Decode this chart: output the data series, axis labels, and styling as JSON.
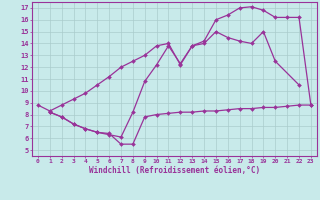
{
  "bg_color": "#c8eaea",
  "line_color": "#993399",
  "grid_color": "#aacccc",
  "xlabel": "Windchill (Refroidissement éolien,°C)",
  "ylabel_ticks": [
    5,
    6,
    7,
    8,
    9,
    10,
    11,
    12,
    13,
    14,
    15,
    16,
    17
  ],
  "xlim": [
    -0.5,
    23.5
  ],
  "ylim": [
    4.5,
    17.5
  ],
  "line1_x": [
    0,
    1,
    2,
    3,
    4,
    5,
    6,
    7,
    8,
    9,
    10,
    11,
    12,
    13,
    14,
    15,
    16,
    17,
    18,
    19,
    20,
    21,
    22,
    23
  ],
  "line1_y": [
    8.8,
    8.3,
    8.8,
    9.3,
    9.8,
    10.5,
    11.2,
    12.0,
    12.5,
    13.0,
    13.8,
    14.0,
    12.2,
    13.8,
    14.2,
    16.0,
    16.4,
    17.0,
    17.1,
    16.8,
    16.2,
    16.2,
    16.2,
    8.8
  ],
  "line2_x": [
    1,
    2,
    3,
    4,
    5,
    6,
    7,
    8,
    9,
    10,
    11,
    12,
    13,
    14,
    15,
    16,
    17,
    18,
    19,
    20,
    22
  ],
  "line2_y": [
    8.2,
    7.8,
    7.2,
    6.8,
    6.5,
    6.3,
    6.1,
    8.2,
    10.8,
    12.2,
    13.8,
    12.3,
    13.8,
    14.0,
    15.0,
    14.5,
    14.2,
    14.0,
    15.0,
    12.5,
    10.5
  ],
  "line3_x": [
    1,
    2,
    3,
    4,
    5,
    6,
    7,
    8,
    9,
    10,
    11,
    12,
    13,
    14,
    15,
    16,
    17,
    18,
    19,
    20,
    21,
    22,
    23
  ],
  "line3_y": [
    8.2,
    7.8,
    7.2,
    6.8,
    6.5,
    6.4,
    5.5,
    5.5,
    7.8,
    8.0,
    8.1,
    8.2,
    8.2,
    8.3,
    8.3,
    8.4,
    8.5,
    8.5,
    8.6,
    8.6,
    8.7,
    8.8,
    8.8
  ],
  "marker": "D",
  "markersize": 2,
  "linewidth": 0.9,
  "xtick_fontsize": 4.5,
  "ytick_fontsize": 5.0,
  "xlabel_fontsize": 5.5
}
